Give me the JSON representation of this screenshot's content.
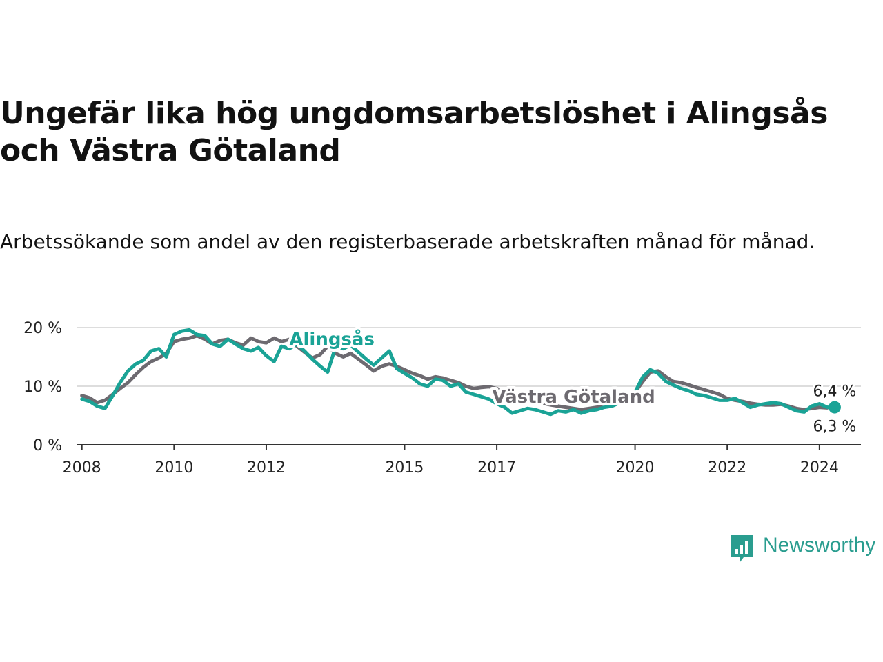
{
  "title": "Ungefär lika hög ungdomsarbetslöshet i Alingsås och Västra Götaland",
  "subtitle": "Arbetssökande som andel av den registerbaserade arbetskraften månad för månad.",
  "brand": {
    "name": "Newsworthy",
    "color": "#2a9d8f"
  },
  "chart_data": {
    "type": "line",
    "title": "Ungefär lika hög ungdomsarbetslöshet i Alingsås och Västra Götaland",
    "subtitle": "Arbetssökande som andel av den registerbaserade arbetskraften månad för månad.",
    "xlabel": "",
    "ylabel": "",
    "ylim": [
      0,
      20
    ],
    "xlim": [
      2007.9,
      2024.9
    ],
    "y_ticks": [
      {
        "value": 0,
        "label": "0 %"
      },
      {
        "value": 10,
        "label": "10 %"
      },
      {
        "value": 20,
        "label": "20 %"
      }
    ],
    "x_ticks": [
      {
        "value": 2008,
        "label": "2008"
      },
      {
        "value": 2010,
        "label": "2010"
      },
      {
        "value": 2012,
        "label": "2012"
      },
      {
        "value": 2015,
        "label": "2015"
      },
      {
        "value": 2017,
        "label": "2017"
      },
      {
        "value": 2020,
        "label": "2020"
      },
      {
        "value": 2022,
        "label": "2022"
      },
      {
        "value": 2024,
        "label": "2024"
      }
    ],
    "grid": true,
    "series": [
      {
        "name": "Västra Götaland",
        "color": "#6d6a70",
        "label_at": [
          2016.9,
          7.2
        ],
        "end_label": "6,3 %",
        "points": [
          [
            2008.0,
            8.4
          ],
          [
            2008.17,
            8.0
          ],
          [
            2008.33,
            7.2
          ],
          [
            2008.5,
            7.6
          ],
          [
            2008.67,
            8.6
          ],
          [
            2008.83,
            9.6
          ],
          [
            2009.0,
            10.6
          ],
          [
            2009.17,
            12.0
          ],
          [
            2009.33,
            13.2
          ],
          [
            2009.5,
            14.2
          ],
          [
            2009.67,
            14.8
          ],
          [
            2009.83,
            15.6
          ],
          [
            2010.0,
            17.6
          ],
          [
            2010.17,
            18.0
          ],
          [
            2010.33,
            18.2
          ],
          [
            2010.5,
            18.6
          ],
          [
            2010.67,
            18.0
          ],
          [
            2010.83,
            17.2
          ],
          [
            2011.0,
            17.8
          ],
          [
            2011.17,
            18.0
          ],
          [
            2011.33,
            17.4
          ],
          [
            2011.5,
            17.0
          ],
          [
            2011.67,
            18.2
          ],
          [
            2011.83,
            17.6
          ],
          [
            2012.0,
            17.4
          ],
          [
            2012.17,
            18.2
          ],
          [
            2012.33,
            17.6
          ],
          [
            2012.5,
            18.0
          ],
          [
            2012.67,
            16.8
          ],
          [
            2012.83,
            15.8
          ],
          [
            2013.0,
            14.8
          ],
          [
            2013.17,
            15.4
          ],
          [
            2013.33,
            16.8
          ],
          [
            2013.5,
            15.6
          ],
          [
            2013.67,
            15.0
          ],
          [
            2013.83,
            15.6
          ],
          [
            2014.0,
            14.6
          ],
          [
            2014.17,
            13.6
          ],
          [
            2014.33,
            12.6
          ],
          [
            2014.5,
            13.4
          ],
          [
            2014.67,
            13.8
          ],
          [
            2014.83,
            13.4
          ],
          [
            2015.0,
            12.8
          ],
          [
            2015.17,
            12.2
          ],
          [
            2015.33,
            11.8
          ],
          [
            2015.5,
            11.2
          ],
          [
            2015.67,
            11.6
          ],
          [
            2015.83,
            11.4
          ],
          [
            2016.0,
            11.0
          ],
          [
            2016.17,
            10.6
          ],
          [
            2016.33,
            10.0
          ],
          [
            2016.5,
            9.6
          ],
          [
            2016.67,
            9.8
          ],
          [
            2016.83,
            9.9
          ],
          [
            2017.0,
            9.6
          ],
          [
            2017.17,
            9.0
          ],
          [
            2017.33,
            8.4
          ],
          [
            2017.5,
            8.0
          ],
          [
            2017.67,
            7.6
          ],
          [
            2017.83,
            7.4
          ],
          [
            2018.0,
            7.1
          ],
          [
            2018.17,
            6.8
          ],
          [
            2018.33,
            6.6
          ],
          [
            2018.5,
            6.4
          ],
          [
            2018.67,
            6.2
          ],
          [
            2018.83,
            6.0
          ],
          [
            2019.0,
            6.2
          ],
          [
            2019.17,
            6.4
          ],
          [
            2019.33,
            6.6
          ],
          [
            2019.5,
            6.8
          ],
          [
            2019.67,
            7.4
          ],
          [
            2019.83,
            8.2
          ],
          [
            2020.0,
            9.0
          ],
          [
            2020.17,
            10.8
          ],
          [
            2020.33,
            12.4
          ],
          [
            2020.5,
            12.6
          ],
          [
            2020.67,
            11.6
          ],
          [
            2020.83,
            10.8
          ],
          [
            2021.0,
            10.6
          ],
          [
            2021.17,
            10.2
          ],
          [
            2021.33,
            9.8
          ],
          [
            2021.5,
            9.4
          ],
          [
            2021.67,
            9.0
          ],
          [
            2021.83,
            8.6
          ],
          [
            2022.0,
            7.9
          ],
          [
            2022.17,
            7.6
          ],
          [
            2022.33,
            7.4
          ],
          [
            2022.5,
            7.1
          ],
          [
            2022.67,
            6.9
          ],
          [
            2022.83,
            6.8
          ],
          [
            2023.0,
            6.8
          ],
          [
            2023.17,
            6.9
          ],
          [
            2023.33,
            6.6
          ],
          [
            2023.5,
            6.2
          ],
          [
            2023.67,
            6.0
          ],
          [
            2023.83,
            6.2
          ],
          [
            2024.0,
            6.4
          ],
          [
            2024.17,
            6.3
          ]
        ]
      },
      {
        "name": "Alingsås",
        "color": "#1aa396",
        "label_at": [
          2012.5,
          17.0
        ],
        "end_label": "6,4 %",
        "points": [
          [
            2008.0,
            7.8
          ],
          [
            2008.17,
            7.4
          ],
          [
            2008.33,
            6.6
          ],
          [
            2008.5,
            6.2
          ],
          [
            2008.67,
            8.4
          ],
          [
            2008.83,
            10.6
          ],
          [
            2009.0,
            12.6
          ],
          [
            2009.17,
            13.8
          ],
          [
            2009.33,
            14.4
          ],
          [
            2009.5,
            16.0
          ],
          [
            2009.67,
            16.4
          ],
          [
            2009.83,
            15.0
          ],
          [
            2010.0,
            18.8
          ],
          [
            2010.17,
            19.4
          ],
          [
            2010.33,
            19.6
          ],
          [
            2010.5,
            18.8
          ],
          [
            2010.67,
            18.6
          ],
          [
            2010.83,
            17.2
          ],
          [
            2011.0,
            16.8
          ],
          [
            2011.17,
            18.0
          ],
          [
            2011.33,
            17.2
          ],
          [
            2011.5,
            16.4
          ],
          [
            2011.67,
            16.0
          ],
          [
            2011.83,
            16.6
          ],
          [
            2012.0,
            15.2
          ],
          [
            2012.17,
            14.2
          ],
          [
            2012.33,
            16.8
          ],
          [
            2012.5,
            16.4
          ],
          [
            2012.67,
            17.2
          ],
          [
            2012.83,
            16.0
          ],
          [
            2013.0,
            14.6
          ],
          [
            2013.17,
            13.4
          ],
          [
            2013.33,
            12.4
          ],
          [
            2013.5,
            16.6
          ],
          [
            2013.67,
            16.4
          ],
          [
            2013.83,
            17.0
          ],
          [
            2014.0,
            15.8
          ],
          [
            2014.17,
            14.6
          ],
          [
            2014.33,
            13.6
          ],
          [
            2014.5,
            14.8
          ],
          [
            2014.67,
            16.0
          ],
          [
            2014.83,
            13.0
          ],
          [
            2015.0,
            12.2
          ],
          [
            2015.17,
            11.4
          ],
          [
            2015.33,
            10.4
          ],
          [
            2015.5,
            10.0
          ],
          [
            2015.67,
            11.2
          ],
          [
            2015.83,
            11.0
          ],
          [
            2016.0,
            10.0
          ],
          [
            2016.17,
            10.4
          ],
          [
            2016.33,
            9.0
          ],
          [
            2016.5,
            8.6
          ],
          [
            2016.67,
            8.2
          ],
          [
            2016.83,
            7.8
          ],
          [
            2017.0,
            7.0
          ],
          [
            2017.17,
            6.4
          ],
          [
            2017.33,
            5.4
          ],
          [
            2017.5,
            5.8
          ],
          [
            2017.67,
            6.2
          ],
          [
            2017.83,
            6.0
          ],
          [
            2018.0,
            5.6
          ],
          [
            2018.17,
            5.2
          ],
          [
            2018.33,
            5.8
          ],
          [
            2018.5,
            5.6
          ],
          [
            2018.67,
            6.0
          ],
          [
            2018.83,
            5.4
          ],
          [
            2019.0,
            5.8
          ],
          [
            2019.17,
            6.0
          ],
          [
            2019.33,
            6.4
          ],
          [
            2019.5,
            6.6
          ],
          [
            2019.67,
            7.2
          ],
          [
            2019.83,
            8.0
          ],
          [
            2020.0,
            9.0
          ],
          [
            2020.17,
            11.6
          ],
          [
            2020.33,
            12.8
          ],
          [
            2020.5,
            12.2
          ],
          [
            2020.67,
            10.8
          ],
          [
            2020.83,
            10.2
          ],
          [
            2021.0,
            9.6
          ],
          [
            2021.17,
            9.2
          ],
          [
            2021.33,
            8.6
          ],
          [
            2021.5,
            8.4
          ],
          [
            2021.67,
            8.0
          ],
          [
            2021.83,
            7.6
          ],
          [
            2022.0,
            7.6
          ],
          [
            2022.17,
            7.9
          ],
          [
            2022.33,
            7.2
          ],
          [
            2022.5,
            6.4
          ],
          [
            2022.67,
            6.8
          ],
          [
            2022.83,
            7.0
          ],
          [
            2023.0,
            7.2
          ],
          [
            2023.17,
            7.0
          ],
          [
            2023.33,
            6.4
          ],
          [
            2023.5,
            5.8
          ],
          [
            2023.67,
            5.6
          ],
          [
            2023.83,
            6.6
          ],
          [
            2024.0,
            7.0
          ],
          [
            2024.17,
            6.4
          ],
          [
            2024.33,
            6.4
          ]
        ]
      }
    ]
  }
}
